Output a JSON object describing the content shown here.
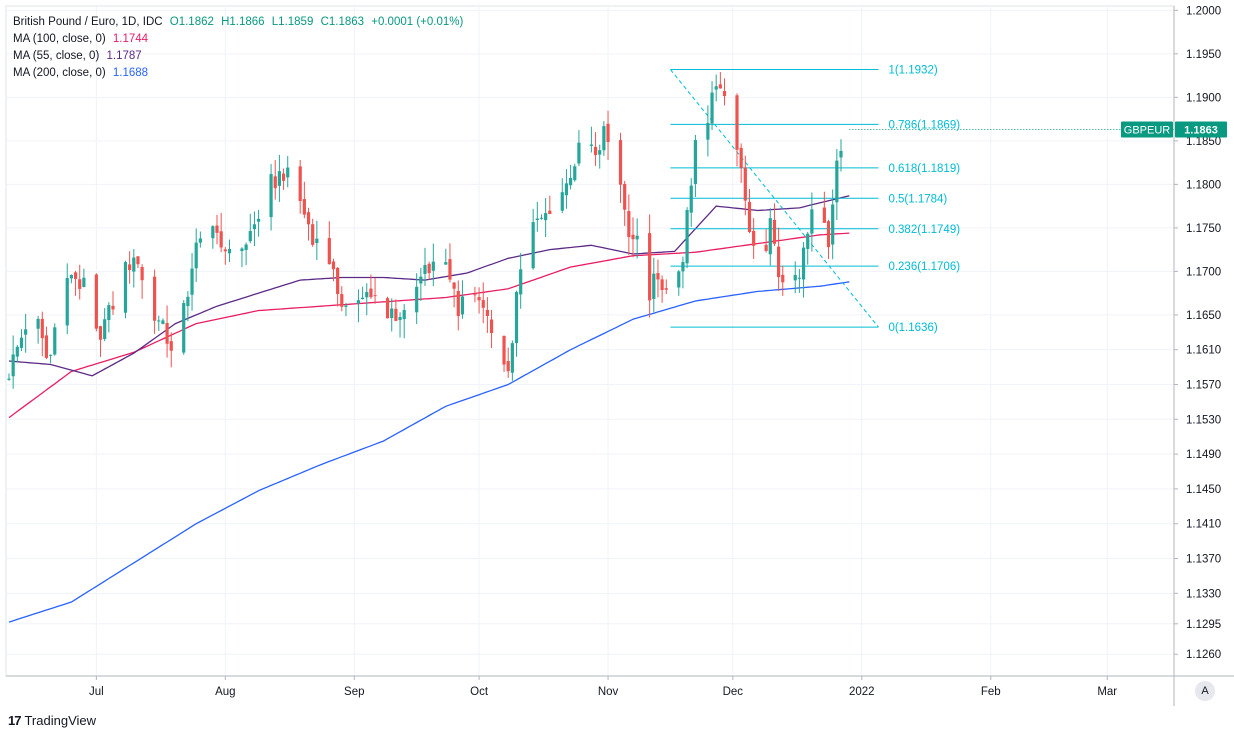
{
  "header": {
    "symbol_line": "British Pound / Euro, 1D, IDC",
    "open": "O1.1862",
    "high": "H1.1866",
    "low": "L1.1859",
    "close": "C1.1863",
    "change": "+0.0001 (+0.01%)",
    "ma100_label": "MA (100, close, 0)",
    "ma100_value": "1.1744",
    "ma55_label": "MA (55, close, 0)",
    "ma55_value": "1.1787",
    "ma200_label": "MA (200, close, 0)",
    "ma200_value": "1.1688"
  },
  "price_tag": {
    "symbol": "GBPEUR",
    "price": "1.1863"
  },
  "footer": {
    "brand": "TradingView",
    "autoscale_label": "A"
  },
  "colors": {
    "up": "#26a69a",
    "down": "#ef5350",
    "ma100": "#e91e63",
    "ma55": "#5b2a86",
    "ma200": "#2962ff",
    "fib": "#00bcd4",
    "tag": "#089981"
  },
  "chart_data": {
    "type": "candlestick",
    "title": "British Pound / Euro, 1D, IDC",
    "ylim": [
      1.1235,
      1.2005
    ],
    "y_ticks": [
      "1.2000",
      "1.1950",
      "1.1900",
      "1.1850",
      "1.1800",
      "1.1750",
      "1.1700",
      "1.1650",
      "1.1610",
      "1.1570",
      "1.1530",
      "1.1490",
      "1.1450",
      "1.1410",
      "1.1370",
      "1.1330",
      "1.1295",
      "1.1260"
    ],
    "x_ticks": [
      {
        "label": "Jul",
        "day": 21
      },
      {
        "label": "Aug",
        "day": 52
      },
      {
        "label": "Sep",
        "day": 83
      },
      {
        "label": "Oct",
        "day": 113
      },
      {
        "label": "Nov",
        "day": 144
      },
      {
        "label": "Dec",
        "day": 174
      },
      {
        "label": "2022",
        "day": 205
      },
      {
        "label": "Feb",
        "day": 236
      },
      {
        "label": "Mar",
        "day": 264
      }
    ],
    "anchors": [
      [
        0,
        1.1585
      ],
      [
        3,
        1.1625
      ],
      [
        6,
        1.1668
      ],
      [
        9,
        1.16
      ],
      [
        12,
        1.165
      ],
      [
        15,
        1.17
      ],
      [
        18,
        1.168
      ],
      [
        21,
        1.1625
      ],
      [
        24,
        1.165
      ],
      [
        27,
        1.169
      ],
      [
        30,
        1.172
      ],
      [
        33,
        1.168
      ],
      [
        36,
        1.164
      ],
      [
        39,
        1.1615
      ],
      [
        42,
        1.166
      ],
      [
        45,
        1.1725
      ],
      [
        48,
        1.1745
      ],
      [
        51,
        1.1728
      ],
      [
        54,
        1.1725
      ],
      [
        57,
        1.1735
      ],
      [
        60,
        1.176
      ],
      [
        63,
        1.18
      ],
      [
        66,
        1.1815
      ],
      [
        69,
        1.179
      ],
      [
        72,
        1.1755
      ],
      [
        75,
        1.172
      ],
      [
        78,
        1.169
      ],
      [
        81,
        1.166
      ],
      [
        84,
        1.166
      ],
      [
        87,
        1.168
      ],
      [
        90,
        1.1658
      ],
      [
        93,
        1.164
      ],
      [
        96,
        1.165
      ],
      [
        99,
        1.17
      ],
      [
        102,
        1.1715
      ],
      [
        105,
        1.17
      ],
      [
        108,
        1.166
      ],
      [
        111,
        1.168
      ],
      [
        114,
        1.1655
      ],
      [
        117,
        1.16
      ],
      [
        118,
        1.1575
      ],
      [
        120,
        1.159
      ],
      [
        123,
        1.17
      ],
      [
        126,
        1.175
      ],
      [
        129,
        1.1775
      ],
      [
        132,
        1.178
      ],
      [
        135,
        1.182
      ],
      [
        138,
        1.186
      ],
      [
        141,
        1.1845
      ],
      [
        144,
        1.186
      ],
      [
        147,
        1.18
      ],
      [
        149,
        1.175
      ],
      [
        151,
        1.173
      ],
      [
        153,
        1.1665
      ],
      [
        156,
        1.1695
      ],
      [
        159,
        1.167
      ],
      [
        162,
        1.172
      ],
      [
        165,
        1.185
      ],
      [
        168,
        1.188
      ],
      [
        171,
        1.192
      ],
      [
        173,
        1.19
      ],
      [
        175,
        1.185
      ],
      [
        177,
        1.177
      ],
      [
        179,
        1.173
      ],
      [
        181,
        1.1705
      ],
      [
        183,
        1.1755
      ],
      [
        185,
        1.17
      ],
      [
        187,
        1.166
      ],
      [
        189,
        1.169
      ],
      [
        191,
        1.172
      ],
      [
        193,
        1.176
      ],
      [
        195,
        1.178
      ],
      [
        197,
        1.172
      ],
      [
        199,
        1.183
      ],
      [
        201,
        1.184
      ],
      [
        202,
        1.1863
      ]
    ],
    "ma100": [
      [
        0,
        1.1532
      ],
      [
        15,
        1.1585
      ],
      [
        30,
        1.1607
      ],
      [
        45,
        1.164
      ],
      [
        60,
        1.1655
      ],
      [
        75,
        1.166
      ],
      [
        90,
        1.1665
      ],
      [
        105,
        1.167
      ],
      [
        120,
        1.168
      ],
      [
        135,
        1.1705
      ],
      [
        150,
        1.1718
      ],
      [
        165,
        1.1722
      ],
      [
        180,
        1.1732
      ],
      [
        195,
        1.1742
      ],
      [
        202,
        1.1744
      ]
    ],
    "ma55": [
      [
        0,
        1.1597
      ],
      [
        10,
        1.1593
      ],
      [
        20,
        1.158
      ],
      [
        30,
        1.1606
      ],
      [
        40,
        1.164
      ],
      [
        50,
        1.166
      ],
      [
        60,
        1.1675
      ],
      [
        70,
        1.169
      ],
      [
        80,
        1.1693
      ],
      [
        90,
        1.1693
      ],
      [
        100,
        1.169
      ],
      [
        110,
        1.1698
      ],
      [
        120,
        1.1715
      ],
      [
        130,
        1.1725
      ],
      [
        140,
        1.173
      ],
      [
        150,
        1.172
      ],
      [
        160,
        1.1723
      ],
      [
        170,
        1.1775
      ],
      [
        180,
        1.177
      ],
      [
        190,
        1.1773
      ],
      [
        202,
        1.1787
      ]
    ],
    "ma200": [
      [
        0,
        1.1297
      ],
      [
        15,
        1.132
      ],
      [
        30,
        1.1365
      ],
      [
        45,
        1.141
      ],
      [
        60,
        1.1448
      ],
      [
        75,
        1.1478
      ],
      [
        90,
        1.1505
      ],
      [
        105,
        1.1545
      ],
      [
        120,
        1.157
      ],
      [
        135,
        1.161
      ],
      [
        150,
        1.1645
      ],
      [
        165,
        1.1666
      ],
      [
        180,
        1.1677
      ],
      [
        195,
        1.1683
      ],
      [
        202,
        1.1688
      ]
    ],
    "fibonacci": {
      "start_day": 159,
      "end_day": 209,
      "levels": [
        {
          "label": "1(1.1932)",
          "value": 1.1932
        },
        {
          "label": "0.786(1.1869)",
          "value": 1.1869
        },
        {
          "label": "0.618(1.1819)",
          "value": 1.1819
        },
        {
          "label": "0.5(1.1784)",
          "value": 1.1784
        },
        {
          "label": "0.382(1.1749)",
          "value": 1.1749
        },
        {
          "label": "0.236(1.1706)",
          "value": 1.1706
        },
        {
          "label": "0(1.1636)",
          "value": 1.1636
        }
      ]
    },
    "trend_line": {
      "start": [
        159,
        1.1932
      ],
      "end": [
        209,
        1.1636
      ]
    },
    "last_price": 1.1863
  }
}
